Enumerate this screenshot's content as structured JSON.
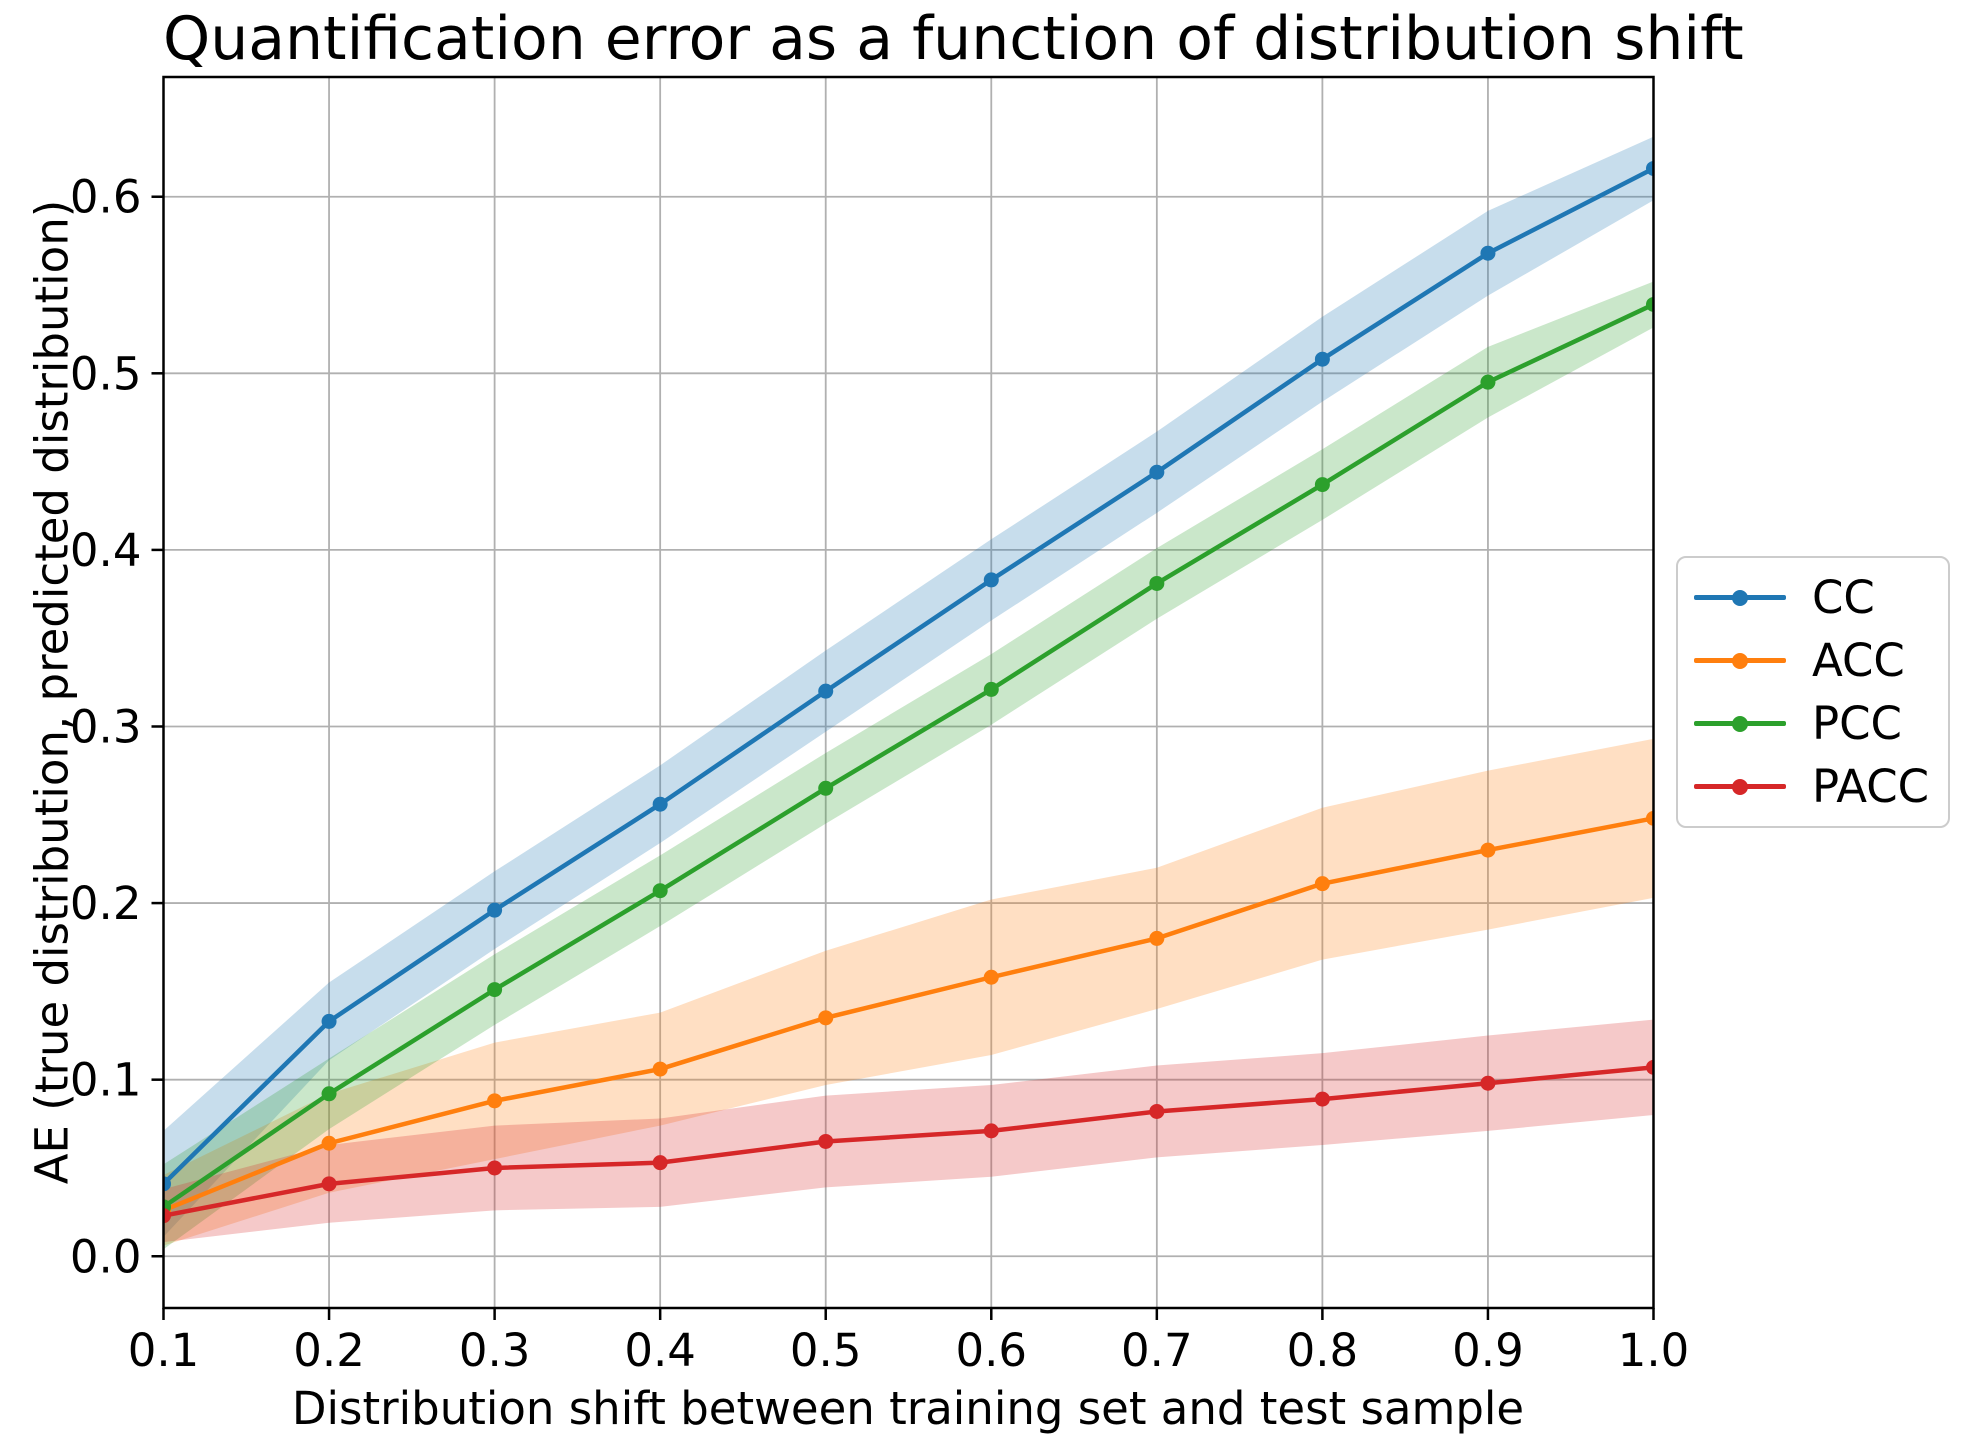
{
  "chart_data": {
    "type": "line",
    "title": "Quantification error as a function of distribution shift",
    "xlabel": "Distribution shift between training set and test sample",
    "ylabel": "AE (true distribution, predicted distribution)",
    "x": [
      0.1,
      0.2,
      0.3,
      0.4,
      0.5,
      0.6,
      0.7,
      0.8,
      0.9,
      1.0
    ],
    "x_tick_labels": [
      "0.1",
      "0.2",
      "0.3",
      "0.4",
      "0.5",
      "0.6",
      "0.7",
      "0.8",
      "0.9",
      "1.0"
    ],
    "y_tick_values": [
      0.0,
      0.1,
      0.2,
      0.3,
      0.4,
      0.5,
      0.6
    ],
    "y_tick_labels": [
      "0.0",
      "0.1",
      "0.2",
      "0.3",
      "0.4",
      "0.5",
      "0.6"
    ],
    "xlim": [
      0.1,
      1.0
    ],
    "ylim": [
      -0.0293,
      0.6678
    ],
    "grid": true,
    "grid_color": "#b0b0b0",
    "axis_color": "#000000",
    "background_color": "#ffffff",
    "band_alpha": 0.25,
    "legend_position": "outside-right",
    "series": [
      {
        "name": "CC",
        "color": "#1f77b4",
        "values": [
          0.041,
          0.133,
          0.196,
          0.256,
          0.32,
          0.383,
          0.444,
          0.508,
          0.568,
          0.616
        ],
        "band_halfwidth": [
          0.03,
          0.022,
          0.022,
          0.022,
          0.023,
          0.023,
          0.023,
          0.024,
          0.024,
          0.018
        ]
      },
      {
        "name": "ACC",
        "color": "#ff7f0e",
        "values": [
          0.026,
          0.064,
          0.088,
          0.106,
          0.135,
          0.158,
          0.18,
          0.211,
          0.23,
          0.248
        ],
        "band_halfwidth": [
          0.02,
          0.028,
          0.033,
          0.032,
          0.038,
          0.044,
          0.04,
          0.043,
          0.045,
          0.045
        ]
      },
      {
        "name": "PCC",
        "color": "#2ca02c",
        "values": [
          0.028,
          0.092,
          0.151,
          0.207,
          0.265,
          0.321,
          0.381,
          0.437,
          0.495,
          0.539
        ],
        "band_halfwidth": [
          0.024,
          0.02,
          0.02,
          0.02,
          0.02,
          0.02,
          0.02,
          0.02,
          0.02,
          0.013
        ]
      },
      {
        "name": "PACC",
        "color": "#d62728",
        "values": [
          0.023,
          0.041,
          0.05,
          0.053,
          0.065,
          0.071,
          0.082,
          0.089,
          0.098,
          0.107
        ],
        "band_halfwidth": [
          0.015,
          0.022,
          0.024,
          0.025,
          0.026,
          0.026,
          0.026,
          0.026,
          0.027,
          0.027
        ]
      }
    ]
  }
}
